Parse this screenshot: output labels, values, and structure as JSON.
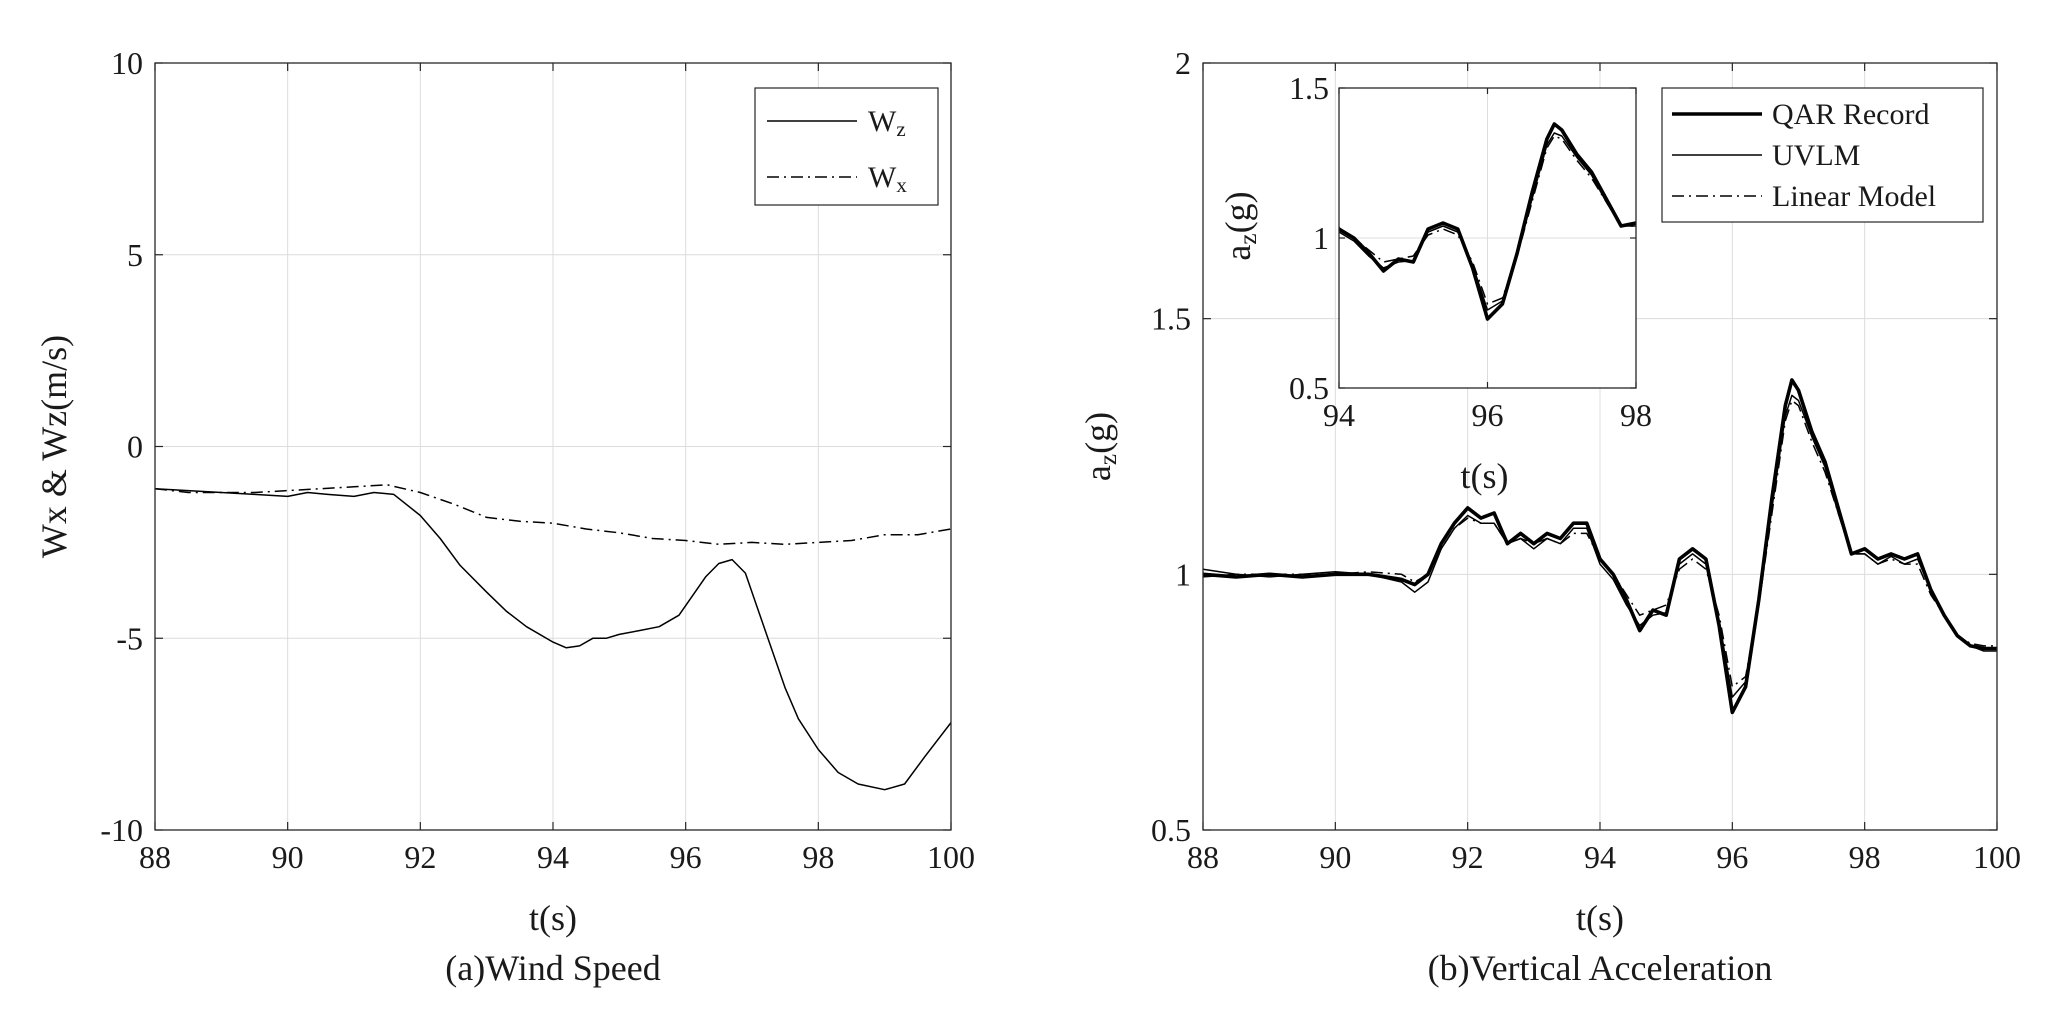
{
  "chart_data": [
    {
      "id": "a",
      "type": "line",
      "caption": "(a)Wind Speed",
      "xlabel": "t(s)",
      "ylabel": "Wx & Wz(m/s)",
      "xlim": [
        88,
        100
      ],
      "ylim": [
        -10,
        10
      ],
      "xticks": [
        88,
        90,
        92,
        94,
        96,
        98,
        100
      ],
      "yticks": [
        -10,
        -5,
        0,
        5,
        10
      ],
      "xtick_labels": [
        "88",
        "90",
        "92",
        "94",
        "96",
        "98",
        "100"
      ],
      "ytick_labels": [
        "-10",
        "-5",
        "0",
        "5",
        "10"
      ],
      "grid": true,
      "legend_position": "top-right",
      "series": [
        {
          "name": "W",
          "subscript": "z",
          "style": "solid",
          "x": [
            88,
            88.5,
            89,
            89.5,
            90,
            90.3,
            90.6,
            91,
            91.3,
            91.6,
            92,
            92.3,
            92.6,
            93,
            93.3,
            93.6,
            94,
            94.2,
            94.4,
            94.6,
            94.8,
            95,
            95.3,
            95.6,
            95.9,
            96.1,
            96.3,
            96.5,
            96.7,
            96.9,
            97.1,
            97.3,
            97.5,
            97.7,
            98,
            98.3,
            98.6,
            99,
            99.3,
            99.6,
            100
          ],
          "values": [
            -1.1,
            -1.15,
            -1.2,
            -1.25,
            -1.3,
            -1.2,
            -1.25,
            -1.3,
            -1.2,
            -1.25,
            -1.8,
            -2.4,
            -3.1,
            -3.8,
            -4.3,
            -4.7,
            -5.1,
            -5.25,
            -5.2,
            -5.0,
            -5.0,
            -4.9,
            -4.8,
            -4.7,
            -4.4,
            -3.9,
            -3.4,
            -3.05,
            -2.95,
            -3.3,
            -4.3,
            -5.3,
            -6.3,
            -7.1,
            -7.9,
            -8.5,
            -8.8,
            -8.95,
            -8.8,
            -8.1,
            -7.2
          ]
        },
        {
          "name": "W",
          "subscript": "x",
          "style": "dashdot",
          "x": [
            88,
            88.5,
            89,
            89.5,
            90,
            90.5,
            91,
            91.5,
            92,
            92.5,
            93,
            93.5,
            94,
            94.5,
            95,
            95.5,
            96,
            96.5,
            97,
            97.5,
            98,
            98.5,
            99,
            99.5,
            100
          ],
          "values": [
            -1.1,
            -1.2,
            -1.2,
            -1.2,
            -1.15,
            -1.1,
            -1.05,
            -1.0,
            -1.2,
            -1.5,
            -1.85,
            -1.95,
            -2.0,
            -2.15,
            -2.25,
            -2.4,
            -2.45,
            -2.55,
            -2.5,
            -2.55,
            -2.5,
            -2.45,
            -2.3,
            -2.3,
            -2.15
          ]
        }
      ]
    },
    {
      "id": "b",
      "type": "line",
      "caption": "(b)Vertical Acceleration",
      "xlabel": "t(s)",
      "ylabel": "a",
      "ylabel_sub": "z",
      "ylabel_suffix": "(g)",
      "xlim": [
        88,
        100
      ],
      "ylim": [
        0.5,
        2
      ],
      "xticks": [
        88,
        90,
        92,
        94,
        96,
        98,
        100
      ],
      "yticks": [
        0.5,
        1,
        1.5,
        2
      ],
      "xtick_labels": [
        "88",
        "90",
        "92",
        "94",
        "96",
        "98",
        "100"
      ],
      "ytick_labels": [
        "0.5",
        "1",
        "1.5",
        "2"
      ],
      "grid": true,
      "legend_position": "top-right",
      "series": [
        {
          "name": "QAR Record",
          "style": "thick",
          "x": [
            88,
            88.5,
            89,
            89.5,
            90,
            90.5,
            91,
            91.2,
            91.4,
            91.6,
            91.8,
            92,
            92.2,
            92.4,
            92.6,
            92.8,
            93,
            93.2,
            93.4,
            93.6,
            93.8,
            94,
            94.2,
            94.4,
            94.6,
            94.8,
            95,
            95.2,
            95.4,
            95.6,
            95.8,
            96,
            96.2,
            96.4,
            96.6,
            96.8,
            96.9,
            97,
            97.2,
            97.4,
            97.6,
            97.8,
            98,
            98.2,
            98.4,
            98.6,
            98.8,
            99,
            99.2,
            99.4,
            99.6,
            99.8,
            100
          ],
          "values": [
            1.0,
            0.995,
            1.0,
            0.995,
            1.0,
            1.0,
            0.99,
            0.98,
            1.0,
            1.06,
            1.1,
            1.13,
            1.11,
            1.12,
            1.06,
            1.08,
            1.06,
            1.08,
            1.07,
            1.1,
            1.1,
            1.03,
            1.0,
            0.95,
            0.89,
            0.93,
            0.92,
            1.03,
            1.05,
            1.03,
            0.9,
            0.73,
            0.78,
            0.95,
            1.15,
            1.33,
            1.38,
            1.36,
            1.28,
            1.22,
            1.13,
            1.04,
            1.05,
            1.03,
            1.04,
            1.03,
            1.04,
            0.97,
            0.92,
            0.88,
            0.86,
            0.855,
            0.855
          ]
        },
        {
          "name": "UVLM",
          "style": "solid",
          "x": [
            88,
            88.5,
            89,
            89.5,
            90,
            90.5,
            91,
            91.2,
            91.4,
            91.6,
            91.8,
            92,
            92.2,
            92.4,
            92.6,
            92.8,
            93,
            93.2,
            93.4,
            93.6,
            93.8,
            94,
            94.2,
            94.4,
            94.6,
            94.8,
            95,
            95.2,
            95.4,
            95.6,
            95.8,
            96,
            96.2,
            96.4,
            96.6,
            96.8,
            96.9,
            97,
            97.2,
            97.4,
            97.6,
            97.8,
            98,
            98.2,
            98.4,
            98.6,
            98.8,
            99,
            99.2,
            99.4,
            99.6,
            99.8,
            100
          ],
          "values": [
            1.01,
            1.0,
            0.995,
            1.0,
            1.005,
            1.0,
            0.985,
            0.965,
            0.985,
            1.05,
            1.09,
            1.115,
            1.1,
            1.1,
            1.06,
            1.07,
            1.05,
            1.07,
            1.06,
            1.09,
            1.09,
            1.02,
            0.99,
            0.94,
            0.9,
            0.92,
            0.925,
            1.02,
            1.04,
            1.02,
            0.91,
            0.76,
            0.79,
            0.94,
            1.13,
            1.31,
            1.35,
            1.34,
            1.27,
            1.21,
            1.12,
            1.04,
            1.04,
            1.02,
            1.035,
            1.02,
            1.03,
            0.97,
            0.92,
            0.88,
            0.86,
            0.85,
            0.85
          ]
        },
        {
          "name": "Linear Model",
          "style": "dashdot",
          "x": [
            88,
            88.5,
            89,
            89.5,
            90,
            90.5,
            91,
            91.2,
            91.4,
            91.6,
            91.8,
            92,
            92.2,
            92.4,
            92.6,
            92.8,
            93,
            93.2,
            93.4,
            93.6,
            93.8,
            94,
            94.2,
            94.4,
            94.6,
            94.8,
            95,
            95.2,
            95.4,
            95.6,
            95.8,
            96,
            96.2,
            96.4,
            96.6,
            96.8,
            96.9,
            97,
            97.2,
            97.4,
            97.6,
            97.8,
            98,
            98.2,
            98.4,
            98.6,
            98.8,
            99,
            99.2,
            99.4,
            99.6,
            99.8,
            100
          ],
          "values": [
            0.995,
            1.0,
            1.0,
            1.0,
            1.0,
            1.005,
            1.0,
            0.985,
            1.0,
            1.05,
            1.09,
            1.11,
            1.1,
            1.1,
            1.06,
            1.07,
            1.06,
            1.07,
            1.06,
            1.08,
            1.08,
            1.03,
            1.0,
            0.96,
            0.92,
            0.93,
            0.94,
            1.01,
            1.03,
            1.01,
            0.92,
            0.78,
            0.8,
            0.94,
            1.12,
            1.3,
            1.34,
            1.33,
            1.26,
            1.2,
            1.12,
            1.04,
            1.04,
            1.02,
            1.03,
            1.02,
            1.02,
            0.96,
            0.92,
            0.88,
            0.865,
            0.86,
            0.86
          ]
        }
      ],
      "inset": {
        "xlabel": "t(s)",
        "ylabel": "a",
        "ylabel_sub": "z",
        "ylabel_suffix": "(g)",
        "xlim": [
          94,
          98
        ],
        "ylim": [
          0.5,
          1.5
        ],
        "xticks": [
          94,
          96,
          98
        ],
        "yticks": [
          0.5,
          1,
          1.5
        ],
        "xtick_labels": [
          "94",
          "96",
          "98"
        ],
        "ytick_labels": [
          "0.5",
          "1",
          "1.5"
        ],
        "grid": true
      }
    }
  ]
}
